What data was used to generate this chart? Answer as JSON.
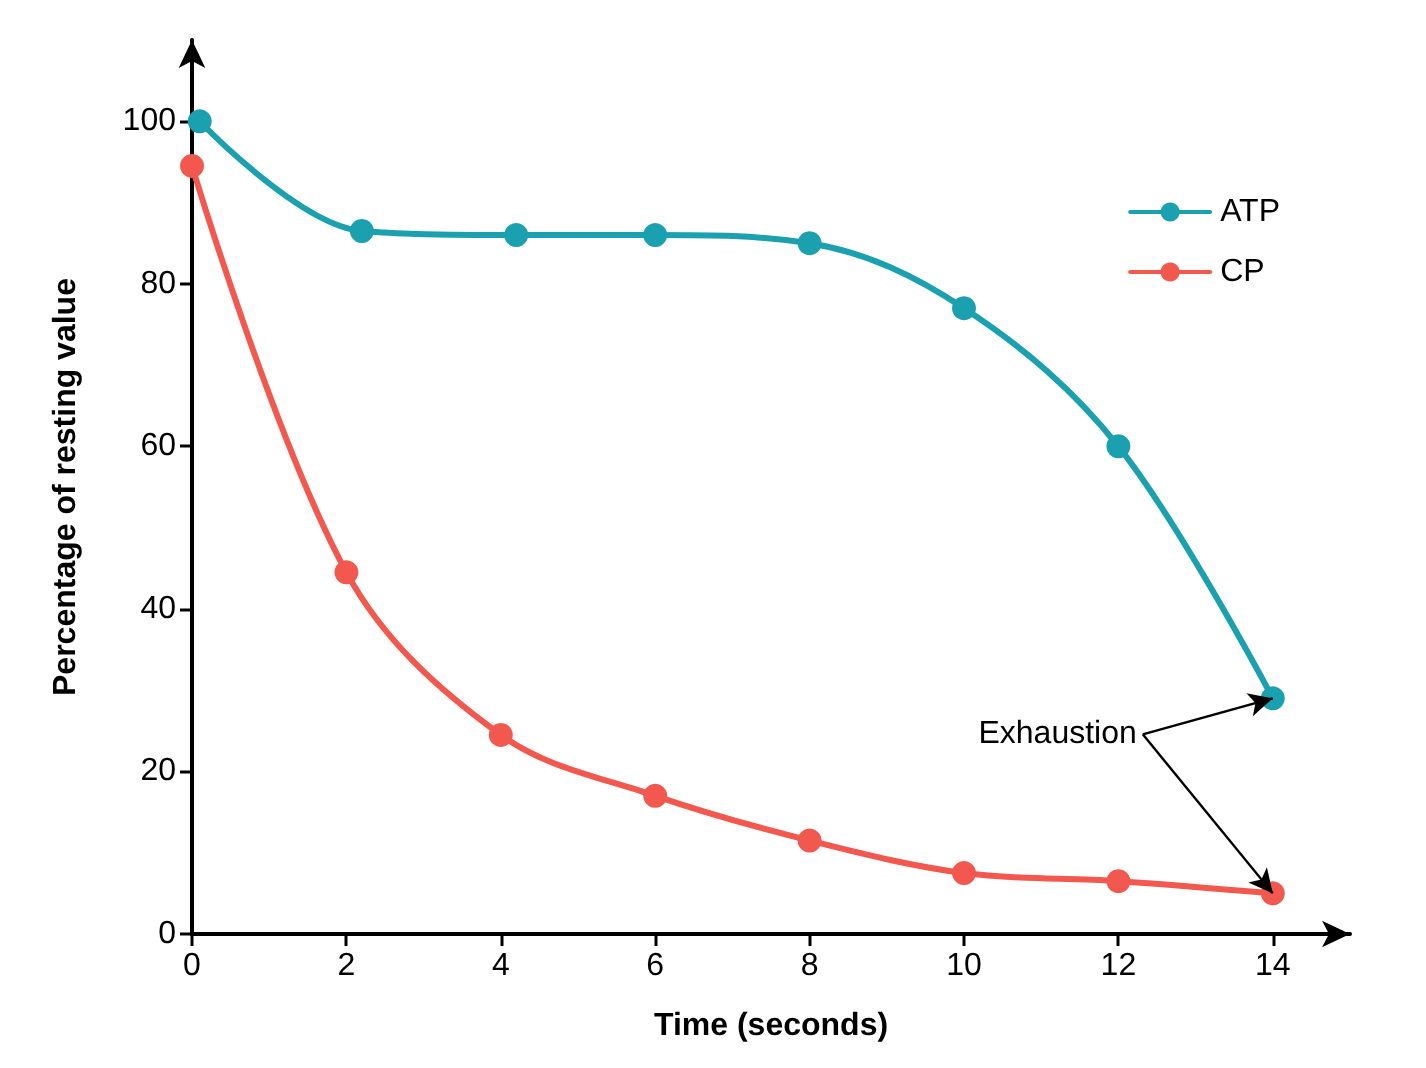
{
  "chart_data": {
    "type": "line",
    "xlabel": "Time (seconds)",
    "ylabel": "Percentage of resting value",
    "series": [
      {
        "name": "ATP",
        "color": "#1aa0ae",
        "x": [
          0.1,
          2.2,
          4.2,
          6,
          8,
          10,
          12,
          14
        ],
        "values": [
          100,
          86.5,
          86,
          86,
          85,
          77,
          60,
          29
        ]
      },
      {
        "name": "CP",
        "color": "#f2584e",
        "x": [
          0,
          2,
          4,
          6,
          8,
          10,
          12,
          14
        ],
        "values": [
          94.5,
          44.5,
          24.5,
          17,
          11.5,
          7.5,
          6.5,
          5
        ]
      }
    ],
    "xlim": [
      0,
      15
    ],
    "xticks": [
      0,
      2,
      4,
      6,
      8,
      10,
      12,
      14
    ],
    "ylim": [
      0,
      110
    ],
    "yticks": [
      0,
      20,
      40,
      60,
      80,
      100
    ],
    "grid": false,
    "legend": "top right",
    "marker": "circle",
    "line_style": "solid",
    "annotations": [
      {
        "text": "Exhaustion",
        "x": 14,
        "y": 29
      }
    ]
  }
}
